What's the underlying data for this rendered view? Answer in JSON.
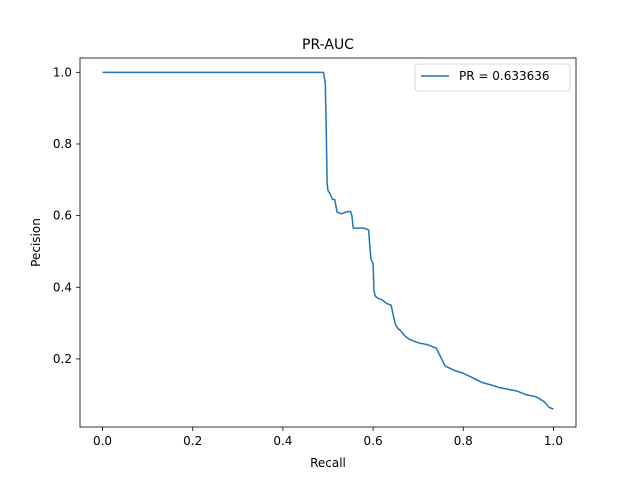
{
  "chart_data": {
    "type": "line",
    "title": "PR-AUC",
    "xlabel": "Recall",
    "ylabel": "Pecision",
    "xlim": [
      -0.05,
      1.05
    ],
    "ylim": [
      0.01,
      1.04
    ],
    "xticks": [
      0.0,
      0.2,
      0.4,
      0.6,
      0.8,
      1.0
    ],
    "xtick_labels": [
      "0.0",
      "0.2",
      "0.4",
      "0.6",
      "0.8",
      "1.0"
    ],
    "yticks": [
      0.2,
      0.4,
      0.6,
      0.8,
      1.0
    ],
    "ytick_labels": [
      "0.2",
      "0.4",
      "0.6",
      "0.8",
      "1.0"
    ],
    "grid": false,
    "legend_position": "top-right",
    "series": [
      {
        "name": "PR = 0.633636",
        "color": "#1f77b4",
        "x": [
          0.0,
          0.1,
          0.2,
          0.3,
          0.4,
          0.49,
          0.494,
          0.496,
          0.498,
          0.5,
          0.505,
          0.51,
          0.515,
          0.52,
          0.53,
          0.54,
          0.55,
          0.553,
          0.556,
          0.56,
          0.57,
          0.58,
          0.59,
          0.595,
          0.6,
          0.602,
          0.605,
          0.61,
          0.62,
          0.63,
          0.64,
          0.645,
          0.648,
          0.65,
          0.655,
          0.66,
          0.67,
          0.68,
          0.69,
          0.7,
          0.72,
          0.74,
          0.75,
          0.76,
          0.78,
          0.8,
          0.82,
          0.84,
          0.86,
          0.88,
          0.9,
          0.92,
          0.94,
          0.96,
          0.97,
          0.98,
          0.99,
          1.0
        ],
        "y": [
          1.0,
          1.0,
          1.0,
          1.0,
          1.0,
          1.0,
          0.97,
          0.85,
          0.69,
          0.67,
          0.66,
          0.645,
          0.645,
          0.61,
          0.605,
          0.61,
          0.612,
          0.6,
          0.565,
          0.565,
          0.565,
          0.565,
          0.56,
          0.48,
          0.465,
          0.39,
          0.375,
          0.37,
          0.365,
          0.355,
          0.35,
          0.32,
          0.305,
          0.295,
          0.285,
          0.28,
          0.265,
          0.255,
          0.25,
          0.245,
          0.24,
          0.23,
          0.205,
          0.18,
          0.168,
          0.16,
          0.148,
          0.135,
          0.128,
          0.12,
          0.115,
          0.11,
          0.1,
          0.095,
          0.088,
          0.08,
          0.065,
          0.06
        ]
      }
    ]
  }
}
